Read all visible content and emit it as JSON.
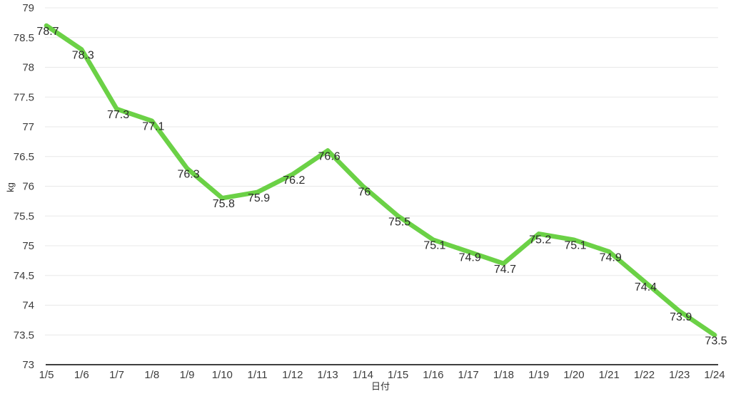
{
  "chart": {
    "y_axis_title": "kg",
    "x_axis_title": "日付",
    "colors": {
      "series": "#6bd146",
      "grid": "#e8e8e8",
      "axis": "#3f3f3f",
      "tick_text": "#3c3c3c",
      "data_label_text": "#2b2b2b",
      "background": "#ffffff"
    }
  },
  "chart_data": {
    "type": "line",
    "title": "",
    "xlabel": "日付",
    "ylabel": "kg",
    "x": [
      "1/5",
      "1/6",
      "1/7",
      "1/8",
      "1/9",
      "1/10",
      "1/11",
      "1/12",
      "1/13",
      "1/14",
      "1/15",
      "1/16",
      "1/17",
      "1/18",
      "1/19",
      "1/20",
      "1/21",
      "1/22",
      "1/23",
      "1/24"
    ],
    "series": [
      {
        "name": "kg",
        "values": [
          78.7,
          78.3,
          77.3,
          77.1,
          76.3,
          75.8,
          75.9,
          76.2,
          76.6,
          76,
          75.5,
          75.1,
          74.9,
          74.7,
          75.2,
          75.1,
          74.9,
          74.4,
          73.9,
          73.5
        ],
        "labels": [
          "78.7",
          "78.3",
          "77.3",
          "77.1",
          "76.3",
          "75.8",
          "75.9",
          "76.2",
          "76.6",
          "76",
          "75.5",
          "75.1",
          "74.9",
          "74.7",
          "75.2",
          "75.1",
          "74.9",
          "74.4",
          "73.9",
          "73.5"
        ]
      }
    ],
    "ylim": [
      73,
      79
    ],
    "ytick_step": 0.5,
    "grid": true,
    "legend": "none",
    "data_labels_shown": true
  }
}
